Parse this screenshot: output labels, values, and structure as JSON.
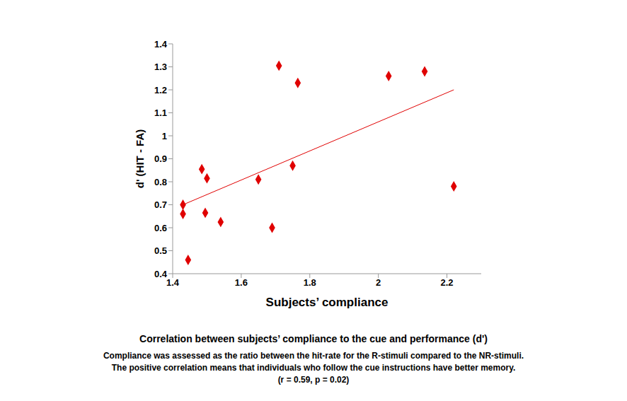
{
  "chart_data": {
    "type": "scatter",
    "title": "Correlation between subjects’ compliance to the cue and performance (d')",
    "caption": [
      "Compliance was assessed as the ratio between the hit-rate for the R-stimuli compared to the NR-stimuli.",
      "The positive correlation means that individuals who follow the cue instructions have better memory.",
      "(r = 0.59, p = 0.02)"
    ],
    "x_label": "Subjects’ compliance",
    "y_label": "d' (HIT - FA)",
    "x": [
      1.43,
      1.43,
      1.445,
      1.485,
      1.495,
      1.5,
      1.54,
      1.65,
      1.69,
      1.71,
      1.75,
      1.765,
      2.03,
      2.135,
      2.22
    ],
    "values": [
      0.7,
      0.66,
      0.46,
      0.855,
      0.665,
      0.815,
      0.625,
      0.81,
      0.6,
      1.305,
      0.87,
      1.23,
      1.26,
      1.28,
      0.78
    ],
    "color": "#e00000",
    "marker": "diamond",
    "trend_line": {
      "x": [
        1.43,
        2.22
      ],
      "values": [
        0.7,
        1.2
      ],
      "color": "#e00000"
    },
    "xlim": [
      1.4,
      2.3
    ],
    "xticks": [
      1.4,
      1.6,
      1.8,
      2,
      2.2
    ],
    "ylim": [
      0.4,
      1.4
    ],
    "yticks": [
      0.4,
      0.5,
      0.6,
      0.7,
      0.8,
      0.9,
      1,
      1.1,
      1.2,
      1.3,
      1.4
    ],
    "grid": false
  }
}
